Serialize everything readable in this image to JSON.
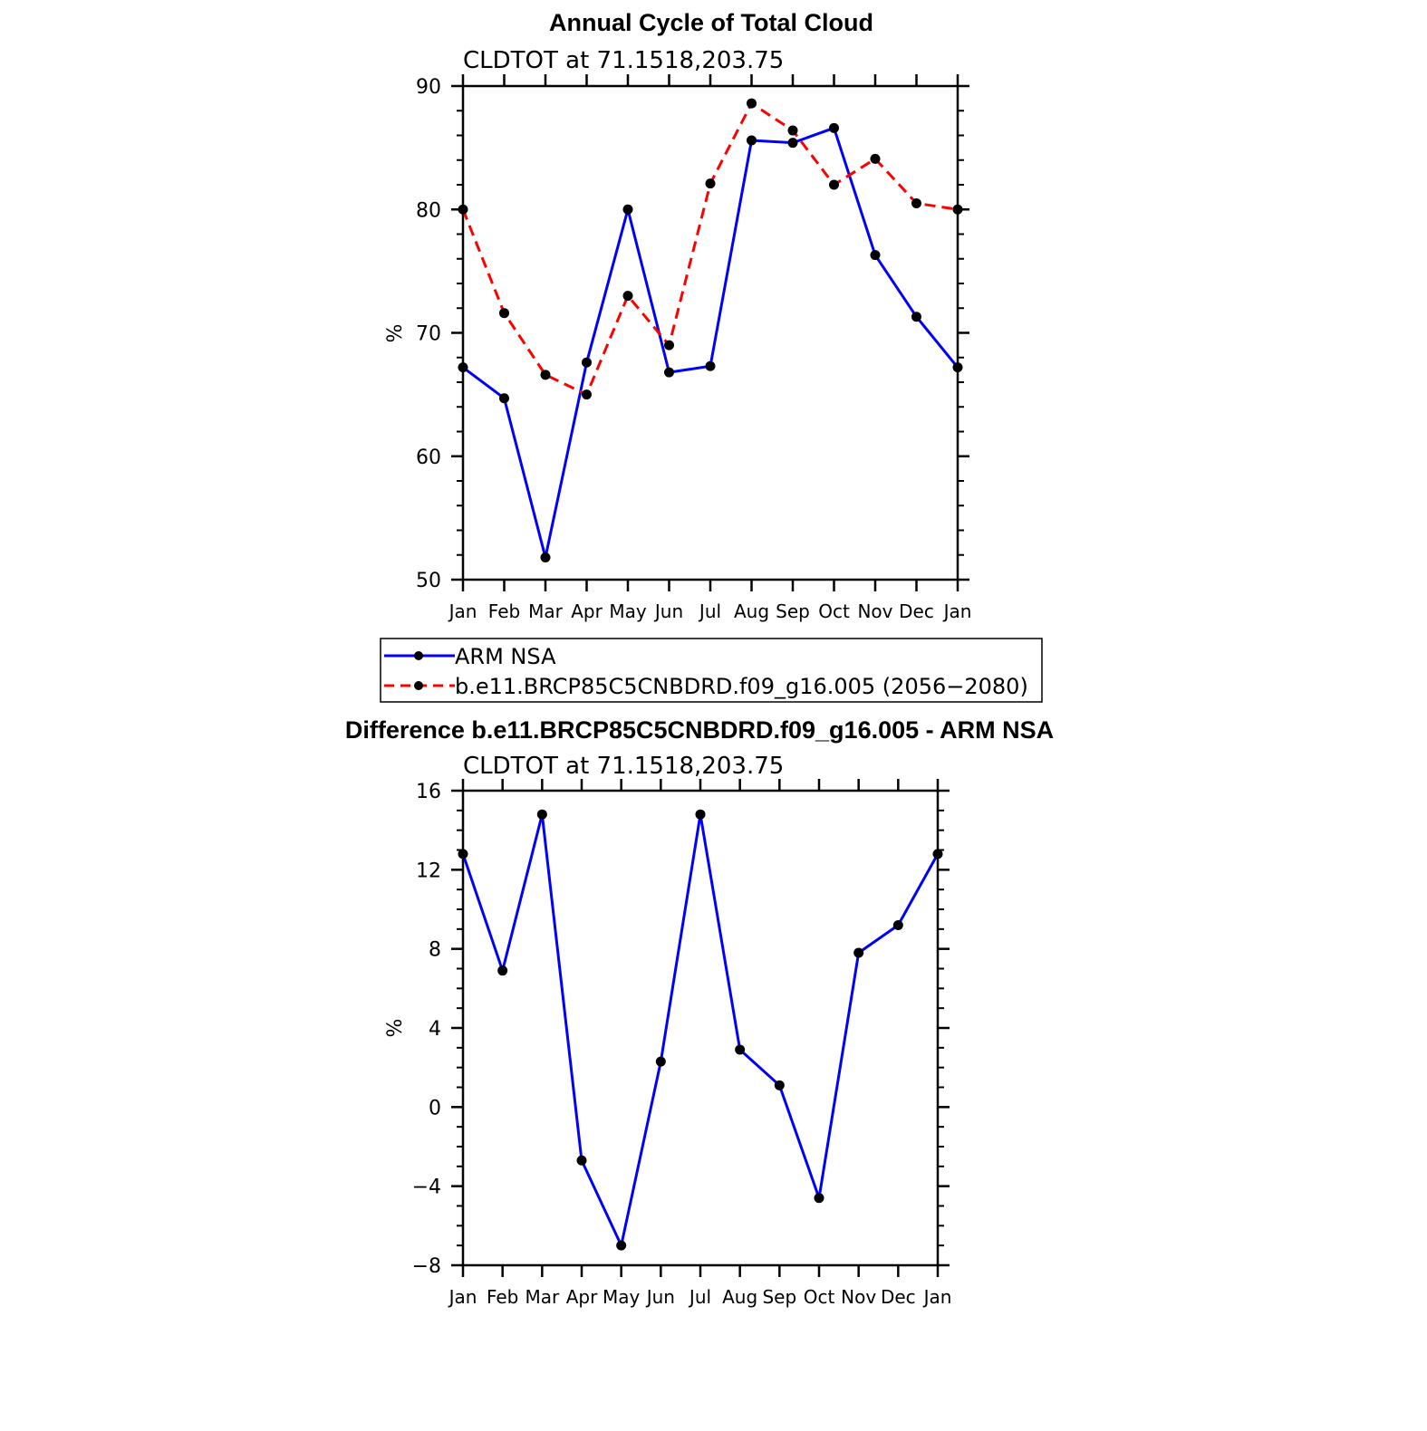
{
  "chart_data": [
    {
      "type": "line",
      "title": "Annual Cycle of Total Cloud",
      "subtitle": "CLDTOT at 71.1518,203.75",
      "ylabel": "%",
      "ylim": [
        50,
        90
      ],
      "yticks": [
        "90",
        "80",
        "70",
        "60",
        "50"
      ],
      "ytick_values": [
        90,
        80,
        70,
        60,
        50
      ],
      "categories": [
        "Jan",
        "Feb",
        "Mar",
        "Apr",
        "May",
        "Jun",
        "Jul",
        "Aug",
        "Sep",
        "Oct",
        "Nov",
        "Dec",
        "Jan"
      ],
      "legend_position": "bottom",
      "series": [
        {
          "name": "ARM NSA",
          "color": "#0000ff",
          "dash": "solid",
          "values": [
            67.2,
            64.7,
            51.8,
            67.6,
            80.0,
            66.8,
            67.3,
            85.6,
            85.4,
            86.6,
            76.3,
            71.3,
            67.2
          ]
        },
        {
          "name": "b.e11.BRCP85C5CNBDRD.f09_g16.005 (2056−2080)",
          "color": "#ff0000",
          "dash": "dashed",
          "values": [
            80.0,
            71.6,
            66.6,
            65.0,
            73.0,
            69.0,
            82.1,
            88.6,
            86.4,
            82.0,
            84.1,
            80.5,
            80.0
          ]
        }
      ]
    },
    {
      "type": "line",
      "title": "Difference b.e11.BRCP85C5CNBDRD.f09_g16.005 - ARM NSA",
      "subtitle": "CLDTOT at 71.1518,203.75",
      "ylabel": "%",
      "ylim": [
        -8,
        16
      ],
      "yticks": [
        "16",
        "12",
        "8",
        "4",
        "0",
        "−4",
        "−8"
      ],
      "ytick_values": [
        16,
        12,
        8,
        4,
        0,
        -4,
        -8
      ],
      "categories": [
        "Jan",
        "Feb",
        "Mar",
        "Apr",
        "May",
        "Jun",
        "Jul",
        "Aug",
        "Sep",
        "Oct",
        "Nov",
        "Dec",
        "Jan"
      ],
      "series": [
        {
          "color": "#0000ff",
          "dash": "solid",
          "values": [
            12.8,
            6.9,
            14.8,
            -2.7,
            -7.0,
            2.3,
            14.8,
            2.9,
            1.1,
            -4.6,
            7.8,
            9.2,
            12.8
          ]
        }
      ]
    }
  ]
}
